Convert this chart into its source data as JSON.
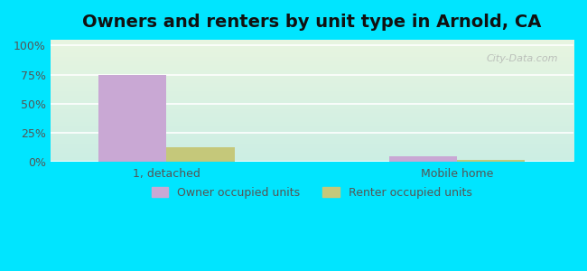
{
  "title": "Owners and renters by unit type in Arnold, CA",
  "categories": [
    "1, detached",
    "Mobile home"
  ],
  "owner_values": [
    75,
    5
  ],
  "renter_values": [
    13,
    2
  ],
  "owner_color": "#c9a8d4",
  "renter_color": "#c5c87a",
  "outer_bg": "#00e5ff",
  "yticks": [
    0,
    25,
    50,
    75,
    100
  ],
  "ylabels": [
    "0%",
    "25%",
    "50%",
    "75%",
    "100%"
  ],
  "ylim": [
    0,
    105
  ],
  "bar_width": 0.35,
  "legend_labels": [
    "Owner occupied units",
    "Renter occupied units"
  ],
  "watermark": "City-Data.com",
  "title_fontsize": 14,
  "tick_fontsize": 9,
  "legend_fontsize": 9
}
